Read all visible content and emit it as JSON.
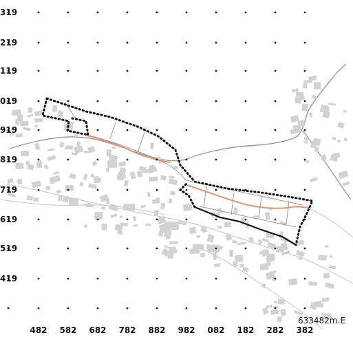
{
  "grid": {
    "y_labels": [
      "319",
      "219",
      "119",
      "019",
      "919",
      "819",
      "719",
      "619",
      "519",
      "419"
    ],
    "x_labels": [
      "482",
      "582",
      "682",
      "782",
      "882",
      "982",
      "082",
      "182",
      "282",
      "382"
    ]
  },
  "easting_note": "633482m.E",
  "colors": {
    "background": "#ffffff",
    "buildings": "#cfcfcf",
    "terrain_lines": "#bdbdbd",
    "road": "#9a9a9a",
    "boundary_dotted": "#111111",
    "boundary_solid": "#111111",
    "route": "#e8926e",
    "parcels": "#9a9a9a"
  }
}
